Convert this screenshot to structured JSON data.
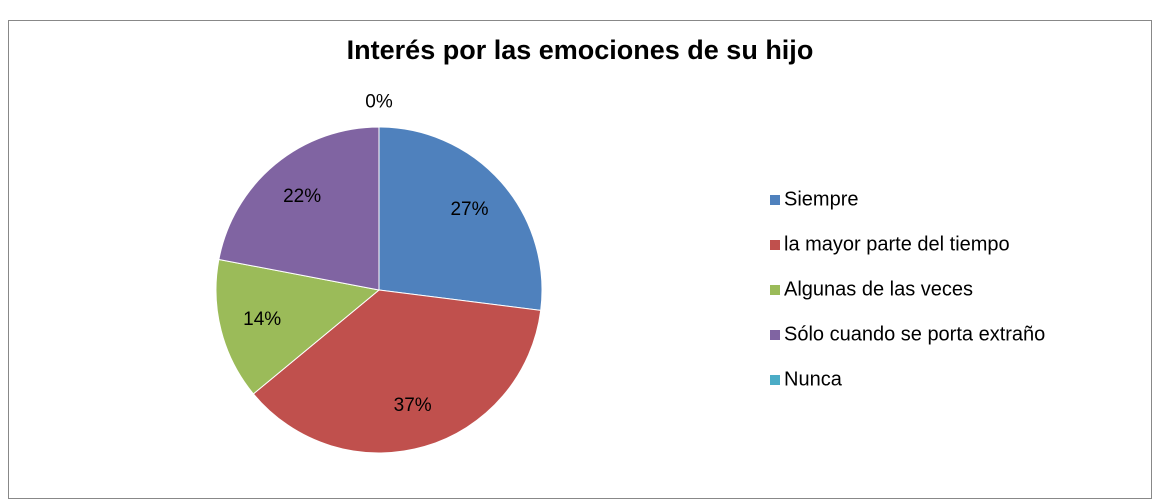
{
  "chart_data": {
    "type": "pie",
    "title": "Interés por las emociones de su hijo",
    "categories": [
      "Siempre",
      "la mayor parte del tiempo",
      "Algunas de las veces",
      "Sólo cuando se porta extraño",
      "Nunca"
    ],
    "values": [
      27,
      37,
      14,
      22,
      0
    ],
    "value_labels": [
      "27%",
      "37%",
      "14%",
      "22%",
      "0%"
    ],
    "colors": [
      "#4f81bd",
      "#c0504d",
      "#9bbb59",
      "#8064a2",
      "#4bacc6"
    ],
    "legend": "right"
  }
}
